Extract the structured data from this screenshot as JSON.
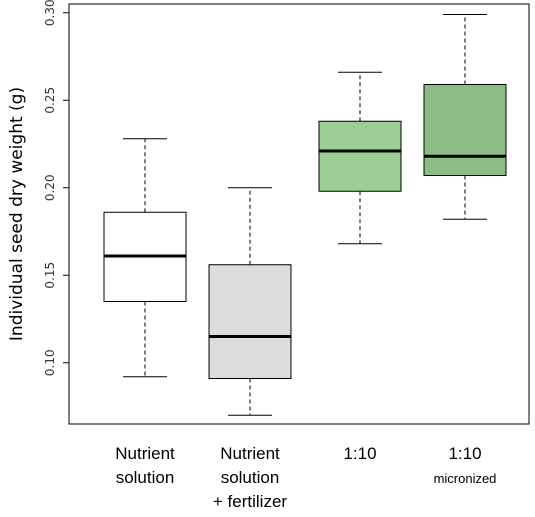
{
  "chart_data": {
    "type": "box",
    "ylabel": "Individual seed dry weight (g)",
    "xlabel": "",
    "title": "",
    "ylim": [
      0.065,
      0.305
    ],
    "yticks": [
      0.1,
      0.15,
      0.2,
      0.25,
      0.3
    ],
    "ytick_labels": [
      "0.10",
      "0.15",
      "0.20",
      "0.25",
      "0.30"
    ],
    "legend": "none",
    "grid": false,
    "categories": [
      {
        "lines": [
          "Nutrient",
          "solution"
        ],
        "sub": ""
      },
      {
        "lines": [
          "Nutrient",
          "solution",
          "+ fertilizer"
        ],
        "sub": ""
      },
      {
        "lines": [
          "1:10"
        ],
        "sub": ""
      },
      {
        "lines": [
          "1:10"
        ],
        "sub": "micronized"
      }
    ],
    "boxes": [
      {
        "min": 0.092,
        "q1": 0.135,
        "median": 0.161,
        "q3": 0.186,
        "max": 0.228,
        "fill": "#ffffff"
      },
      {
        "min": 0.07,
        "q1": 0.091,
        "median": 0.115,
        "q3": 0.156,
        "max": 0.2,
        "fill": "#dcdcdc"
      },
      {
        "min": 0.168,
        "q1": 0.198,
        "median": 0.221,
        "q3": 0.238,
        "max": 0.266,
        "fill": "#9ccf94"
      },
      {
        "min": 0.182,
        "q1": 0.207,
        "median": 0.218,
        "q3": 0.259,
        "max": 0.299,
        "fill": "#8bbd84"
      }
    ]
  }
}
